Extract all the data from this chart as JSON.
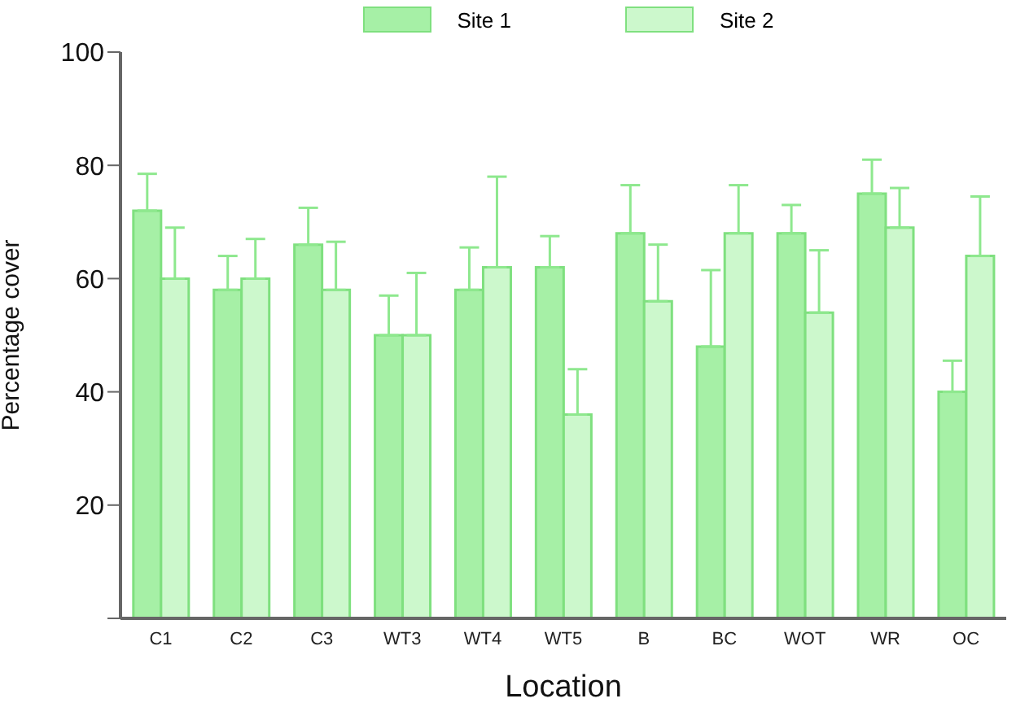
{
  "chart_data": {
    "type": "bar",
    "xlabel": "Location",
    "ylabel": "Percentage cover",
    "categories": [
      "C1",
      "C2",
      "C3",
      "WT3",
      "WT4",
      "WT5",
      "B",
      "BC",
      "WOT",
      "WR",
      "OC"
    ],
    "series": [
      {
        "name": "Site 1",
        "color": "#a6f0a6",
        "values": [
          72,
          58,
          66,
          50,
          58,
          62,
          68,
          48,
          68,
          75,
          40
        ],
        "errors": [
          [
            72,
            78.5
          ],
          [
            58,
            64
          ],
          [
            66,
            72.5
          ],
          [
            50,
            57
          ],
          [
            58,
            65.5
          ],
          [
            62,
            67.5
          ],
          [
            68,
            76.5
          ],
          [
            48,
            61.5
          ],
          [
            68,
            73
          ],
          [
            75,
            81
          ],
          [
            40,
            45.5
          ]
        ]
      },
      {
        "name": "Site 2",
        "color": "#ccf8cc",
        "values": [
          60,
          60,
          58,
          50,
          62,
          36,
          56,
          68,
          54,
          69,
          64
        ],
        "errors": [
          [
            60,
            69
          ],
          [
            60,
            67
          ],
          [
            58,
            66.5
          ],
          [
            50,
            61
          ],
          [
            62,
            78
          ],
          [
            36,
            44
          ],
          [
            56,
            66
          ],
          [
            68,
            76.5
          ],
          [
            54,
            65
          ],
          [
            69,
            76
          ],
          [
            64,
            74.5
          ]
        ]
      }
    ],
    "ylim": [
      0,
      100
    ],
    "yticks": [
      {
        "value": 0,
        "label": null
      },
      20,
      40,
      60,
      80,
      100
    ],
    "grid": false,
    "legend": "top"
  }
}
